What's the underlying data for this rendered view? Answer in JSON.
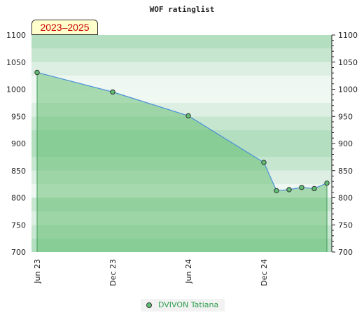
{
  "chart_data": {
    "type": "area",
    "title": "WOF ratinglist",
    "period_label": "2023–2025",
    "ylim": [
      700,
      1100
    ],
    "y_ticks": [
      700,
      750,
      800,
      850,
      900,
      950,
      1000,
      1050,
      1100
    ],
    "x_ticks": [
      "Jun 23",
      "Dec 23",
      "Jun 24",
      "Dec 24"
    ],
    "series": [
      {
        "name": "DVIVON Tatiana",
        "points": [
          {
            "x": "2023-06",
            "y": 1031
          },
          {
            "x": "2023-12",
            "y": 995
          },
          {
            "x": "2024-06",
            "y": 951
          },
          {
            "x": "2024-12",
            "y": 865
          },
          {
            "x": "2025-01",
            "y": 813
          },
          {
            "x": "2025-02",
            "y": 815
          },
          {
            "x": "2025-03",
            "y": 819
          },
          {
            "x": "2025-04",
            "y": 817
          },
          {
            "x": "2025-05",
            "y": 827
          }
        ]
      }
    ],
    "legend_position": "bottom",
    "colors": {
      "line": "#4a90d9",
      "fill": "#5dbb6b",
      "marker": "#5fbf74",
      "band_dark": "#b3dec0",
      "band_light": "#f0f8f2",
      "legend_text": "#2e9e4e"
    }
  }
}
